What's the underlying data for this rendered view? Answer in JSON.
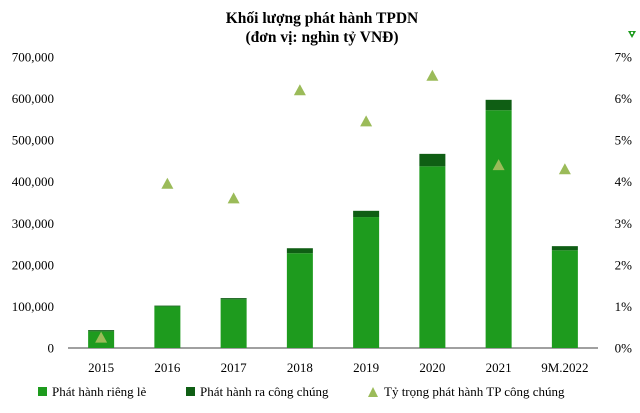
{
  "chart_data": {
    "type": "bar",
    "title": "Khối lượng phát hành TPDN",
    "subtitle": "(đơn vị: nghìn tỷ VNĐ)",
    "categories": [
      "2015",
      "2016",
      "2017",
      "2018",
      "2019",
      "2020",
      "2021",
      "9M.2022"
    ],
    "stacked": true,
    "series": [
      {
        "name": "Phát hành riêng lẻ",
        "type": "bar",
        "axis": "left",
        "color": "#1e9b1e",
        "values": [
          40000,
          100000,
          117000,
          228000,
          315000,
          437000,
          572000,
          235000
        ]
      },
      {
        "name": "Phát hành ra công chúng",
        "type": "bar",
        "axis": "left",
        "color": "#0f5e14",
        "values": [
          3000,
          2000,
          3000,
          12000,
          15000,
          30000,
          25000,
          10000
        ]
      },
      {
        "name": "Tỷ trọng phát hành TP công chúng",
        "type": "scatter",
        "axis": "right",
        "color": "#9bbb59",
        "marker": "triangle",
        "values": [
          0.25,
          3.95,
          3.6,
          6.2,
          5.45,
          6.55,
          4.4,
          4.3
        ]
      }
    ],
    "y_left": {
      "ylim": [
        0,
        700000
      ],
      "ticks": [
        0,
        100000,
        200000,
        300000,
        400000,
        500000,
        600000,
        700000
      ],
      "tick_labels": [
        "0",
        "100,000",
        "200,000",
        "300,000",
        "400,000",
        "500,000",
        "600,000",
        "700,000"
      ]
    },
    "y_right": {
      "ylim": [
        0,
        7
      ],
      "ticks": [
        0,
        1,
        2,
        3,
        4,
        5,
        6,
        7
      ],
      "tick_labels": [
        "0%",
        "1%",
        "2%",
        "3%",
        "4%",
        "5%",
        "6%",
        "7%"
      ]
    },
    "grid": false,
    "legend_position": "bottom"
  }
}
